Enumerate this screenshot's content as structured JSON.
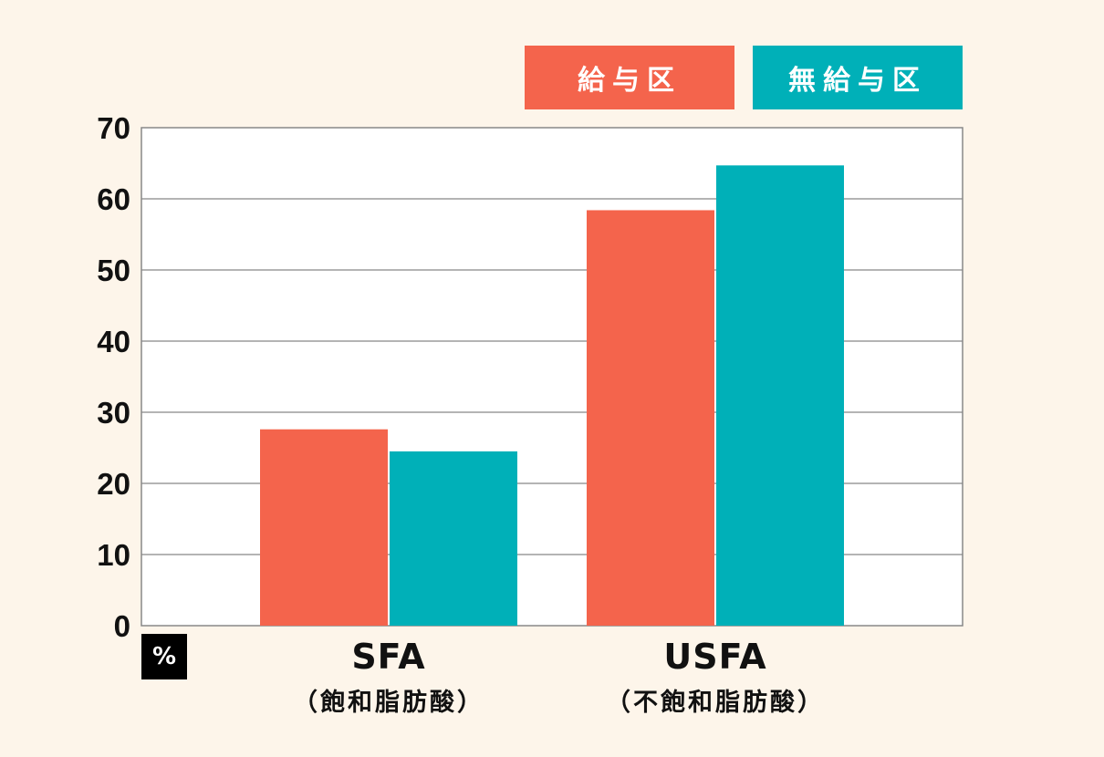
{
  "colors": {
    "background": "#fdf5ea",
    "series_0": "#f4644c",
    "series_1": "#00b0b8",
    "grid": "#888888",
    "text": "#111111"
  },
  "unit_label": "%",
  "chart_data": {
    "type": "bar",
    "categories": [
      "SFA",
      "USFA"
    ],
    "category_sublabels": [
      "（飽和脂肪酸）",
      "（不飽和脂肪酸）"
    ],
    "series": [
      {
        "name": "給与区",
        "values": [
          27.6,
          58.4
        ]
      },
      {
        "name": "無給与区",
        "values": [
          24.5,
          64.7
        ]
      }
    ],
    "ylim": [
      0,
      70
    ],
    "yticks": [
      0,
      10,
      20,
      30,
      40,
      50,
      60,
      70
    ],
    "grid": true,
    "legend_position": "top-right"
  }
}
